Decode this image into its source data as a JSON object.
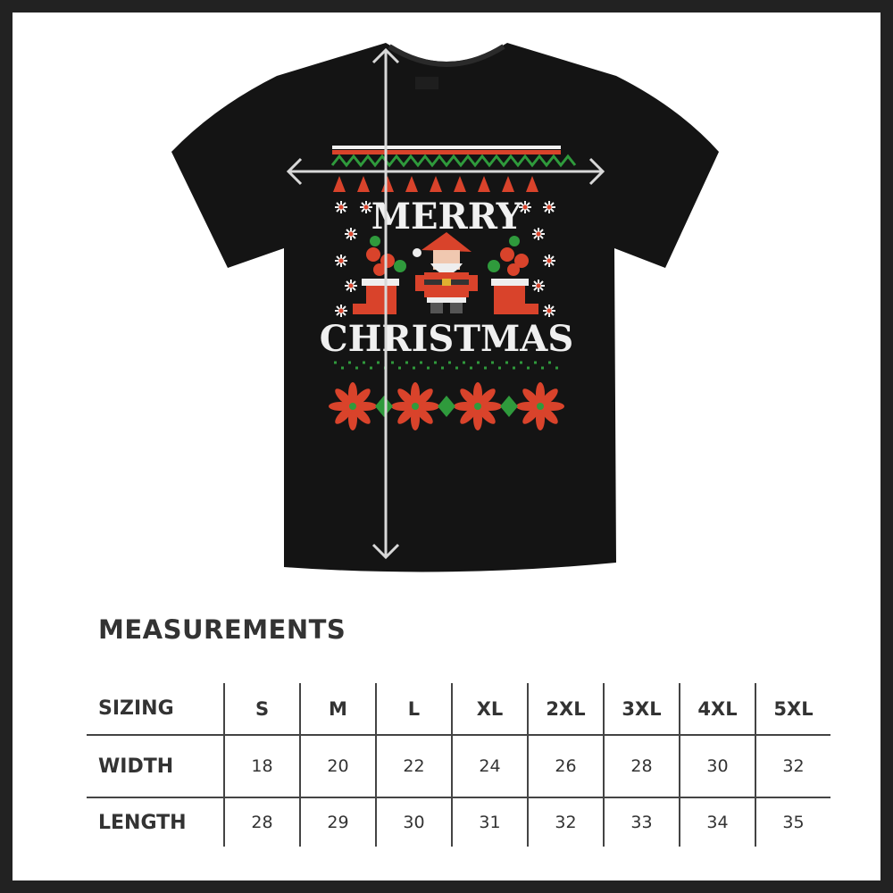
{
  "shirt": {
    "design_text_top": "MERRY",
    "design_text_bottom": "CHRISTMAS",
    "colors": {
      "shirt": "#141414",
      "red": "#d9432b",
      "green": "#2f9a3c",
      "white": "#f2f2f2",
      "arrow": "#d8d8d8"
    }
  },
  "measurements": {
    "title": "MEASUREMENTS",
    "header": {
      "label": "SIZING",
      "sizes": [
        "S",
        "M",
        "L",
        "XL",
        "2XL",
        "3XL",
        "4XL",
        "5XL"
      ]
    },
    "rows": [
      {
        "label": "WIDTH",
        "values": [
          "18",
          "20",
          "22",
          "24",
          "26",
          "28",
          "30",
          "32"
        ]
      },
      {
        "label": "LENGTH",
        "values": [
          "28",
          "29",
          "30",
          "31",
          "32",
          "33",
          "34",
          "35"
        ]
      }
    ]
  }
}
